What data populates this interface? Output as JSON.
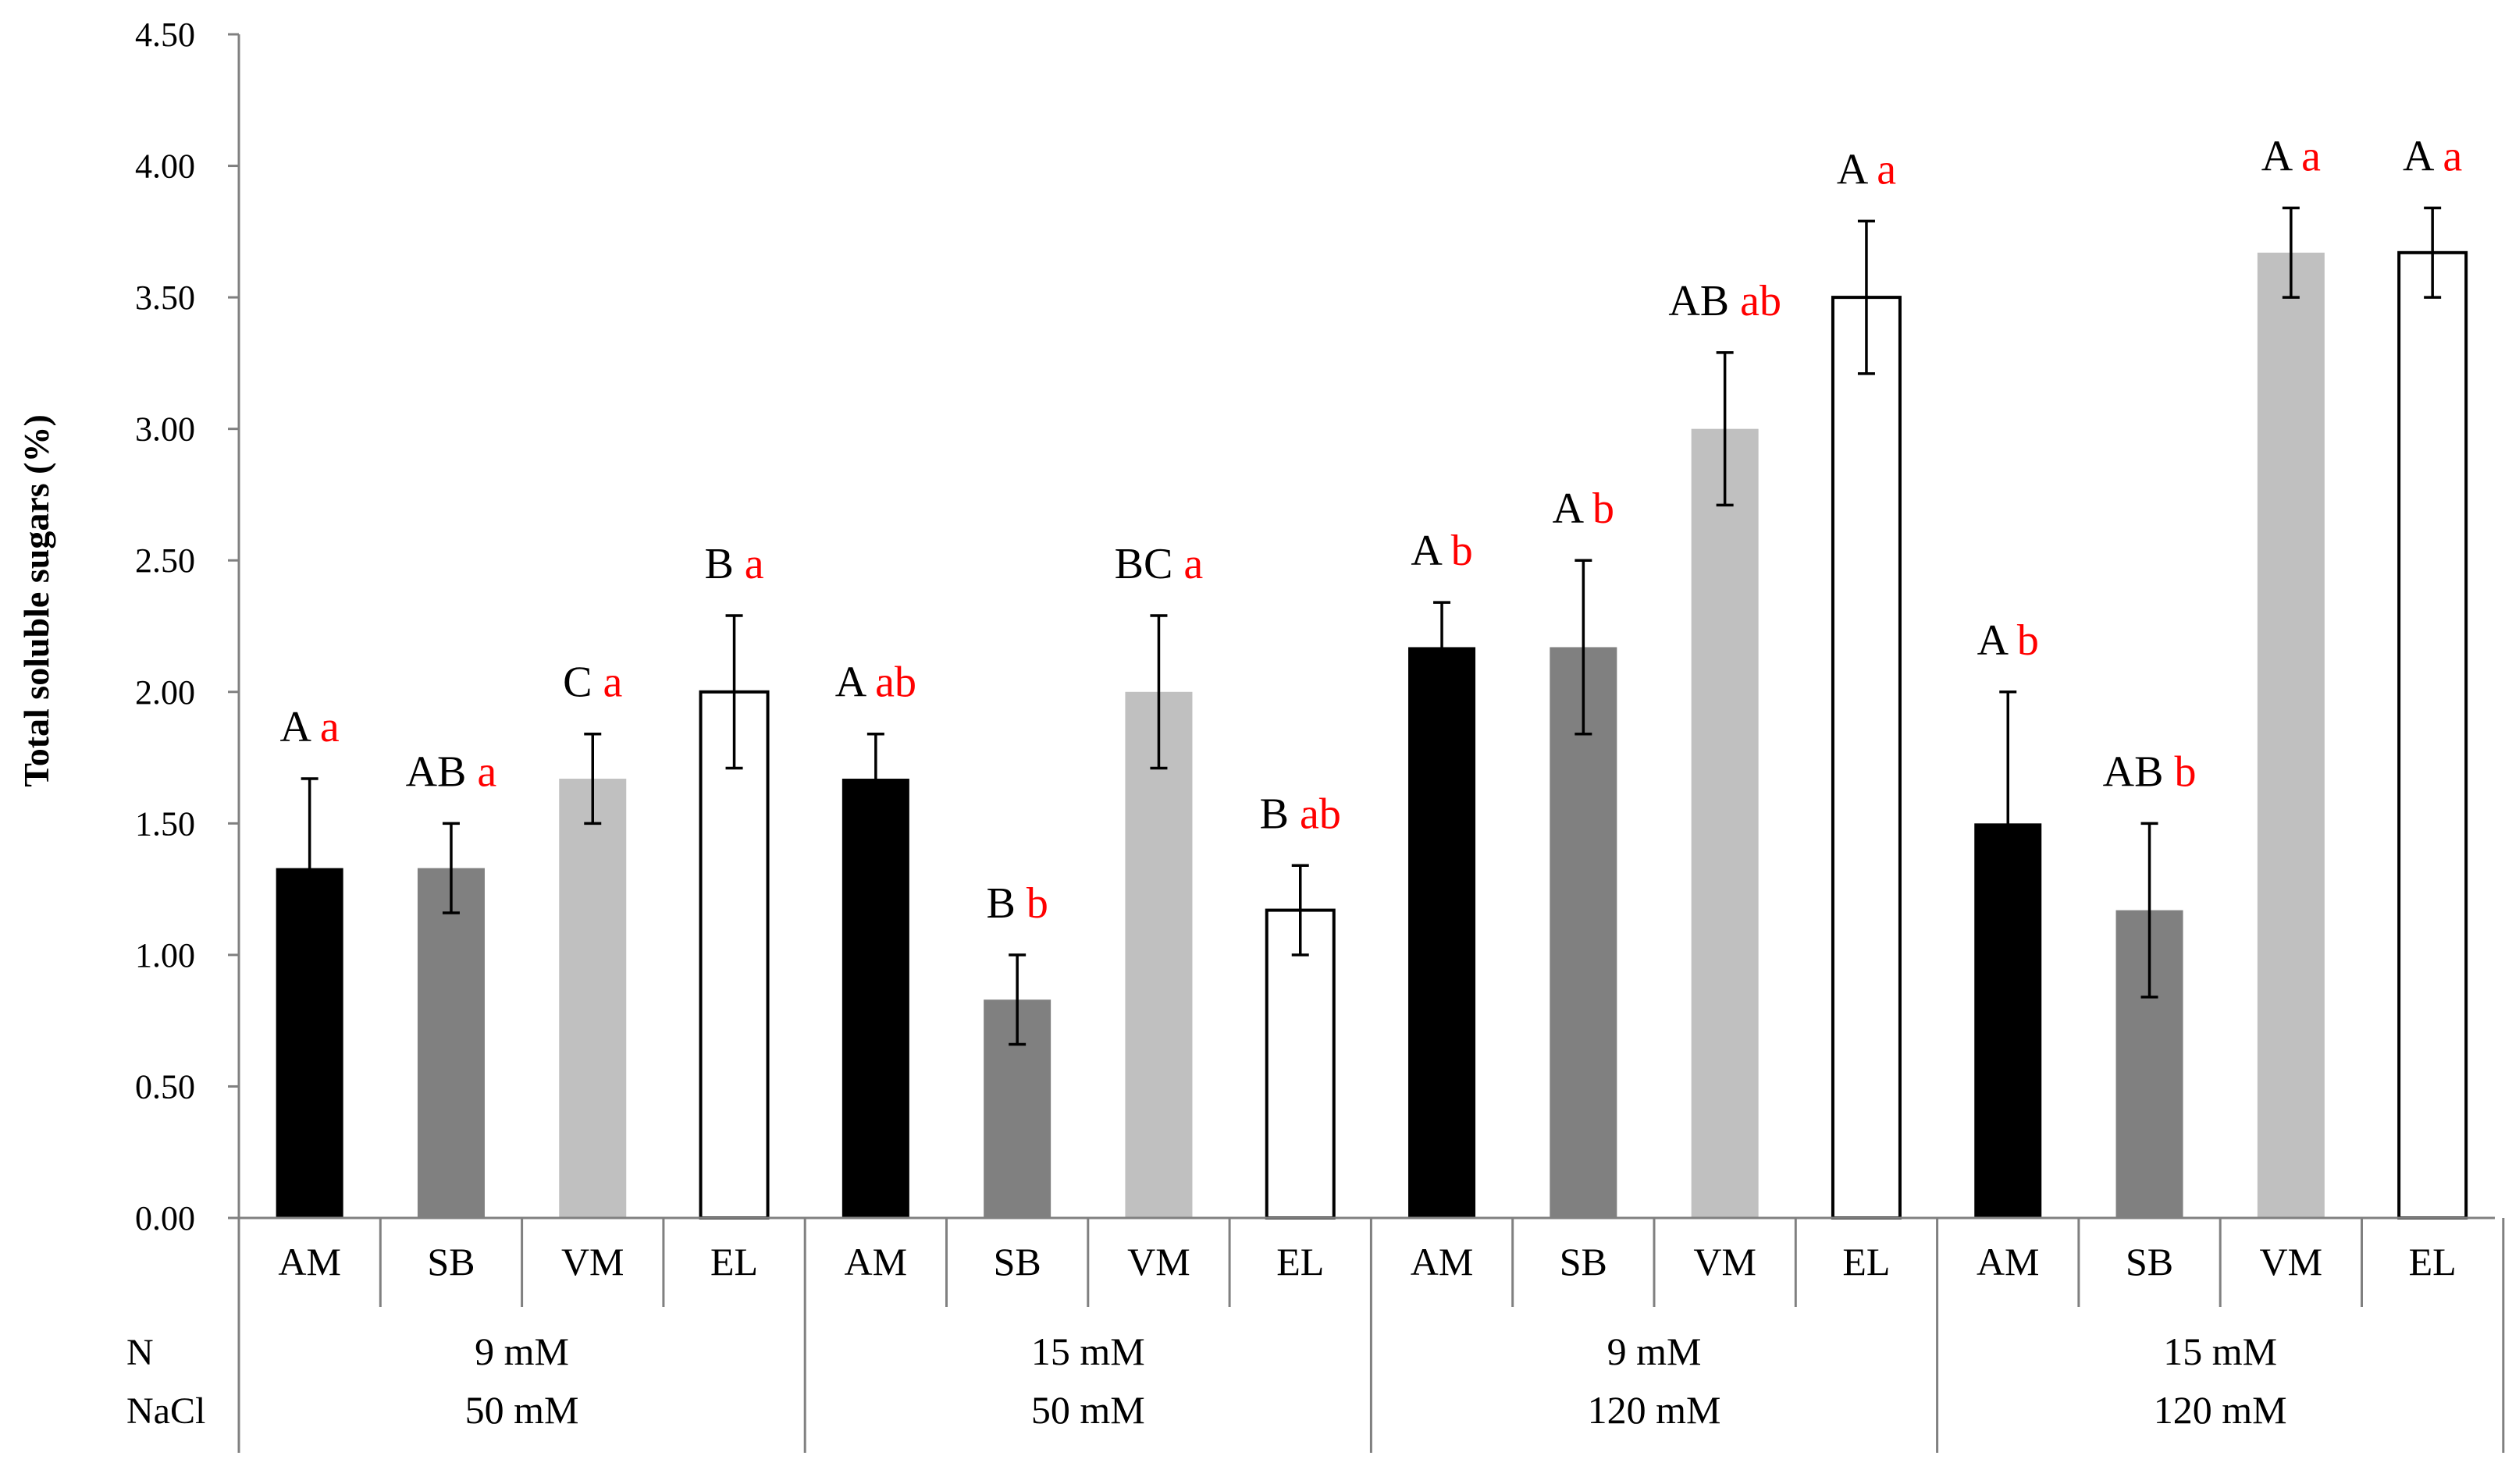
{
  "chart_data": {
    "type": "bar",
    "title": "",
    "ylabel": "Total soluble sugars (%)",
    "xlabel": "",
    "ylim": [
      0,
      4.5
    ],
    "y_ticks": [
      "0.00",
      "0.50",
      "1.00",
      "1.50",
      "2.00",
      "2.50",
      "3.00",
      "3.50",
      "4.00",
      "4.50"
    ],
    "grid": false,
    "legend": "none",
    "colors": {
      "AM": "#000000",
      "SB": "#808080",
      "VM": "#c0c0c0",
      "EL": "#ffffff",
      "axis": "#808080",
      "uppercase_letter": "#000000",
      "lowercase_letter": "#ff0000"
    },
    "row_labels": {
      "n": "N",
      "nacl": "NaCl"
    },
    "groups": [
      {
        "n": "9 mM",
        "nacl": "50 mM",
        "bars": [
          {
            "category": "AM",
            "value": 1.33,
            "err": 0.34,
            "upper": "A",
            "lower": "a"
          },
          {
            "category": "SB",
            "value": 1.33,
            "err": 0.17,
            "upper": "AB",
            "lower": "a"
          },
          {
            "category": "VM",
            "value": 1.67,
            "err": 0.17,
            "upper": "C",
            "lower": "a"
          },
          {
            "category": "EL",
            "value": 2.0,
            "err": 0.29,
            "upper": "B",
            "lower": "a"
          }
        ]
      },
      {
        "n": "15 mM",
        "nacl": "50 mM",
        "bars": [
          {
            "category": "AM",
            "value": 1.67,
            "err": 0.17,
            "upper": "A",
            "lower": "ab"
          },
          {
            "category": "SB",
            "value": 0.83,
            "err": 0.17,
            "upper": "B",
            "lower": "b"
          },
          {
            "category": "VM",
            "value": 2.0,
            "err": 0.29,
            "upper": "BC",
            "lower": "a"
          },
          {
            "category": "EL",
            "value": 1.17,
            "err": 0.17,
            "upper": "B",
            "lower": "ab"
          }
        ]
      },
      {
        "n": "9 mM",
        "nacl": "120 mM",
        "bars": [
          {
            "category": "AM",
            "value": 2.17,
            "err": 0.17,
            "upper": "A",
            "lower": "b"
          },
          {
            "category": "SB",
            "value": 2.17,
            "err": 0.33,
            "upper": "A",
            "lower": "b"
          },
          {
            "category": "VM",
            "value": 3.0,
            "err": 0.29,
            "upper": "AB",
            "lower": "ab"
          },
          {
            "category": "EL",
            "value": 3.5,
            "err": 0.29,
            "upper": "A",
            "lower": "a"
          }
        ]
      },
      {
        "n": "15 mM",
        "nacl": "120 mM",
        "bars": [
          {
            "category": "AM",
            "value": 1.5,
            "err": 0.5,
            "upper": "A",
            "lower": "b"
          },
          {
            "category": "SB",
            "value": 1.17,
            "err": 0.33,
            "upper": "AB",
            "lower": "b"
          },
          {
            "category": "VM",
            "value": 3.67,
            "err": 0.17,
            "upper": "A",
            "lower": "a"
          },
          {
            "category": "EL",
            "value": 3.67,
            "err": 0.17,
            "upper": "A",
            "lower": "a"
          }
        ]
      }
    ]
  }
}
